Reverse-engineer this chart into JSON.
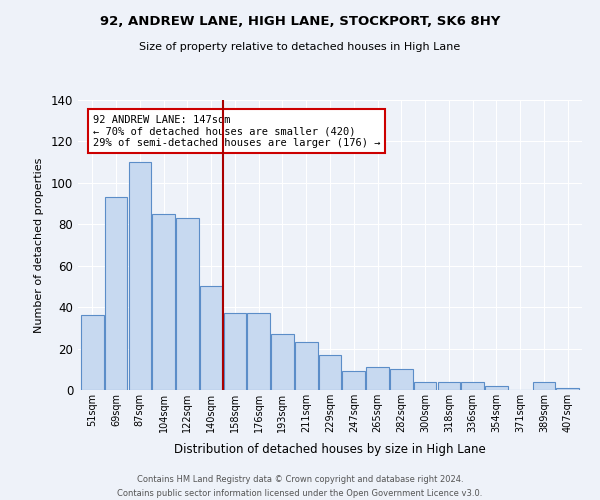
{
  "title": "92, ANDREW LANE, HIGH LANE, STOCKPORT, SK6 8HY",
  "subtitle": "Size of property relative to detached houses in High Lane",
  "xlabel": "Distribution of detached houses by size in High Lane",
  "ylabel": "Number of detached properties",
  "bar_labels": [
    "51sqm",
    "69sqm",
    "87sqm",
    "104sqm",
    "122sqm",
    "140sqm",
    "158sqm",
    "176sqm",
    "193sqm",
    "211sqm",
    "229sqm",
    "247sqm",
    "265sqm",
    "282sqm",
    "300sqm",
    "318sqm",
    "336sqm",
    "354sqm",
    "371sqm",
    "389sqm",
    "407sqm"
  ],
  "bar_heights": [
    36,
    93,
    110,
    85,
    83,
    50,
    37,
    37,
    27,
    23,
    17,
    9,
    11,
    10,
    4,
    4,
    4,
    2,
    0,
    4,
    1
  ],
  "bar_color": "#c7d9f0",
  "bar_edge_color": "#5b8dc8",
  "vline_x": 5.5,
  "vline_color": "#aa0000",
  "annotation_text": "92 ANDREW LANE: 147sqm\n← 70% of detached houses are smaller (420)\n29% of semi-detached houses are larger (176) →",
  "annotation_box_color": "#ffffff",
  "annotation_box_edge": "#cc0000",
  "ylim": [
    0,
    140
  ],
  "yticks": [
    0,
    20,
    40,
    60,
    80,
    100,
    120,
    140
  ],
  "bg_color": "#eef2f9",
  "footer_line1": "Contains HM Land Registry data © Crown copyright and database right 2024.",
  "footer_line2": "Contains public sector information licensed under the Open Government Licence v3.0."
}
